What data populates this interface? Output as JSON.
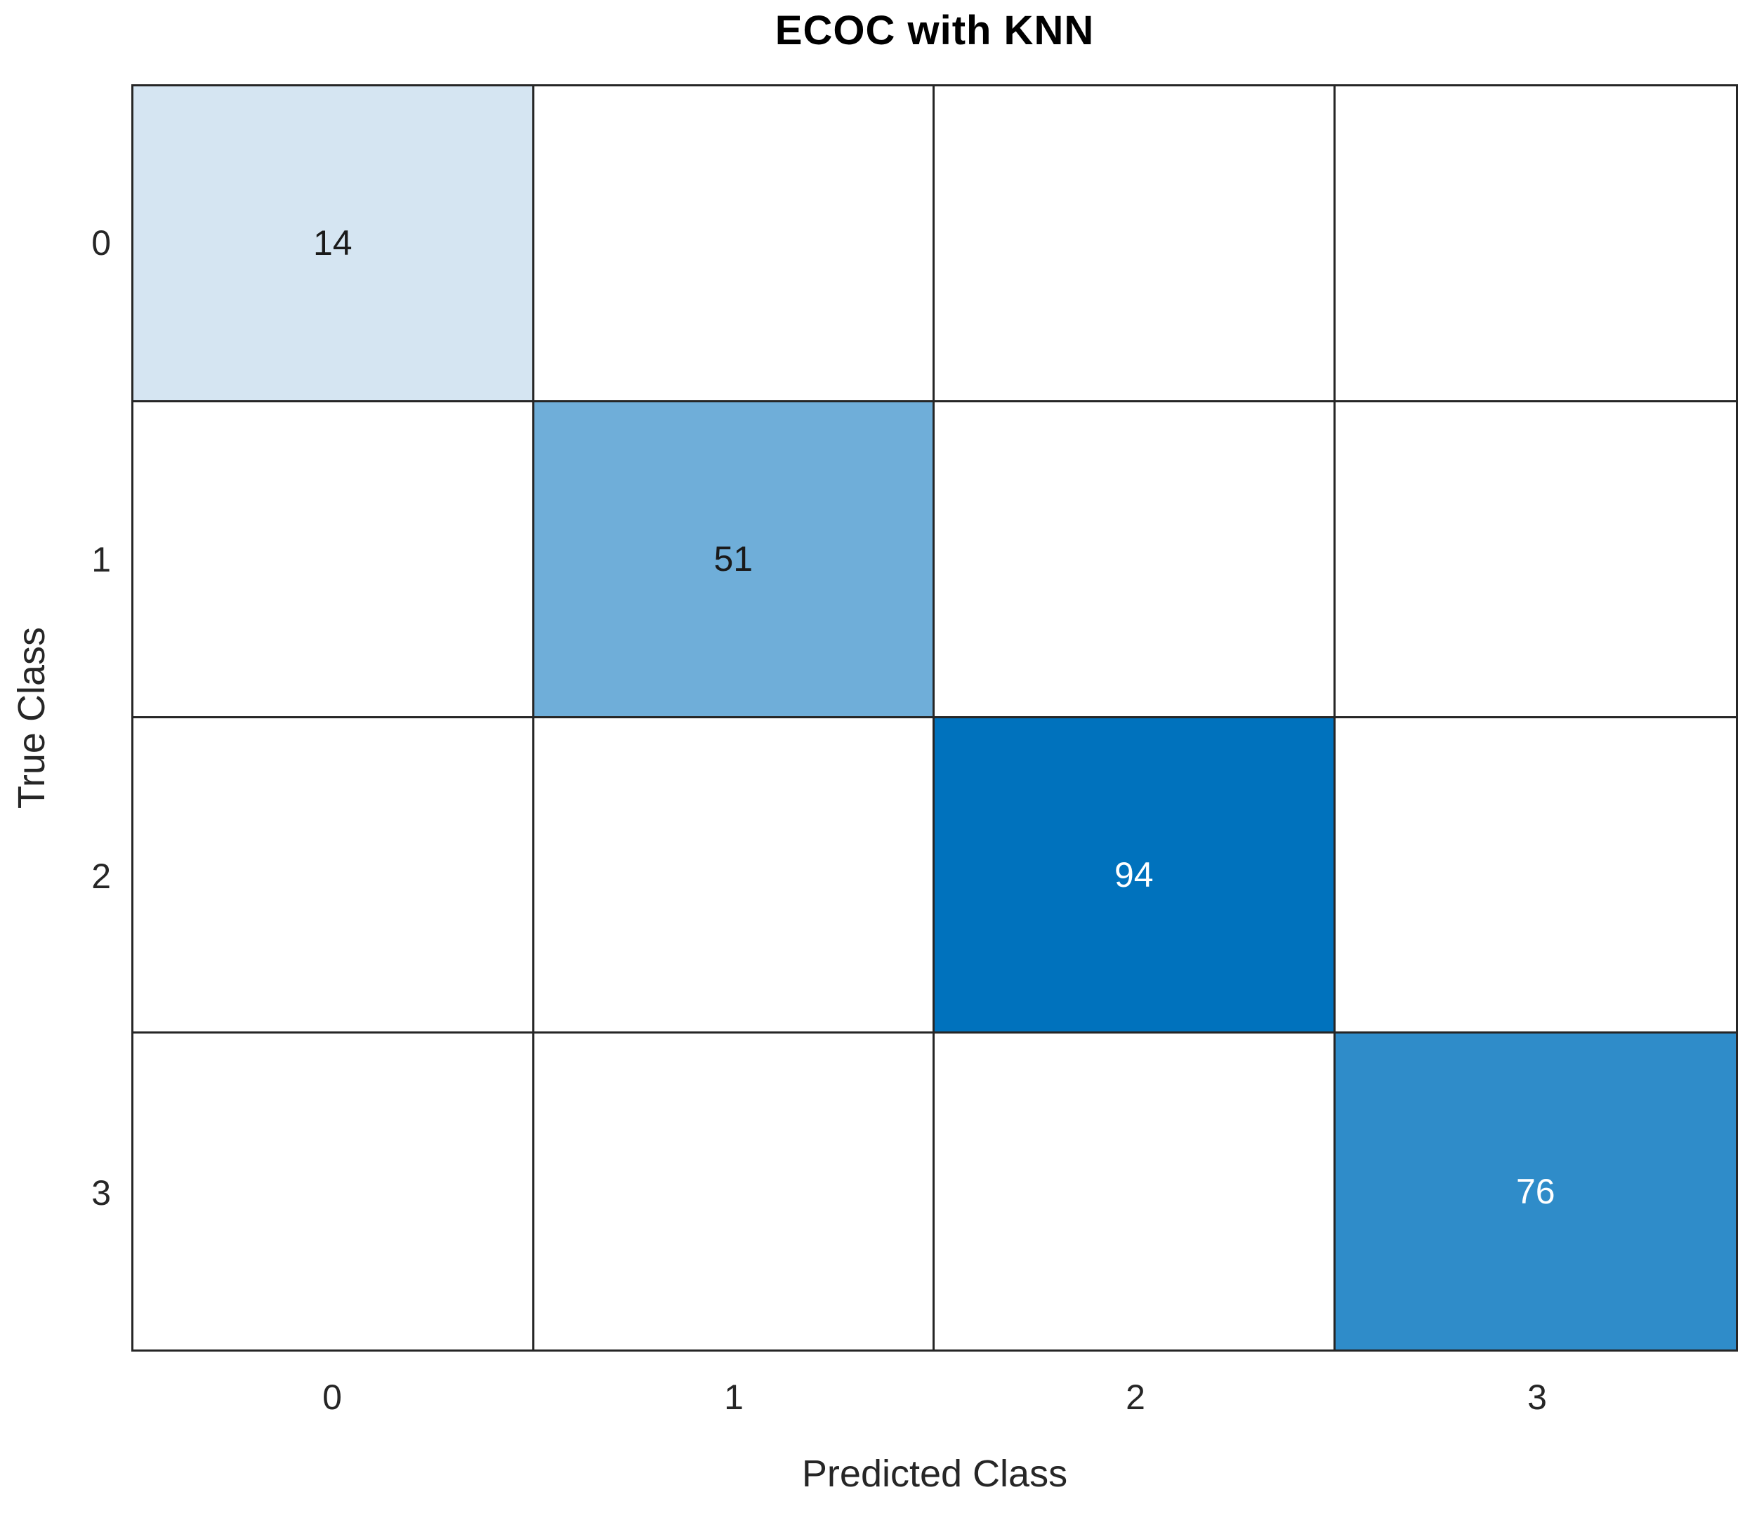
{
  "chart_data": {
    "type": "heatmap",
    "subtype": "confusion-matrix",
    "title": "ECOC with KNN",
    "xlabel": "Predicted Class",
    "ylabel": "True Class",
    "x_tick_labels": [
      "0",
      "1",
      "2",
      "3"
    ],
    "y_tick_labels": [
      "0",
      "1",
      "2",
      "3"
    ],
    "matrix": [
      [
        14,
        null,
        null,
        null
      ],
      [
        null,
        51,
        null,
        null
      ],
      [
        null,
        null,
        94,
        null
      ],
      [
        null,
        null,
        null,
        76
      ]
    ],
    "diagonal_values": [
      14,
      51,
      94,
      76
    ],
    "max_value": 94,
    "grid_rows": 4,
    "grid_cols": 4,
    "cells": [
      {
        "row": 0,
        "col": 0,
        "value": "14",
        "fill": "#D5E5F2",
        "text_color": "#1a1a1a"
      },
      {
        "row": 1,
        "col": 1,
        "value": "51",
        "fill": "#6FAED9",
        "text_color": "#1a1a1a"
      },
      {
        "row": 2,
        "col": 2,
        "value": "94",
        "fill": "#0072BD",
        "text_color": "#ffffff"
      },
      {
        "row": 3,
        "col": 3,
        "value": "76",
        "fill": "#2F8CC9",
        "text_color": "#ffffff"
      }
    ],
    "empty_cell_fill": "#FFFFFF",
    "colors": {
      "frame": "#262626",
      "gridline": "#262626",
      "title_text": "#000000",
      "axis_text": "#262626",
      "max_fill": "#0072BD"
    },
    "layout": {
      "legend": "none",
      "grid": "on",
      "colorbar": "none"
    }
  }
}
